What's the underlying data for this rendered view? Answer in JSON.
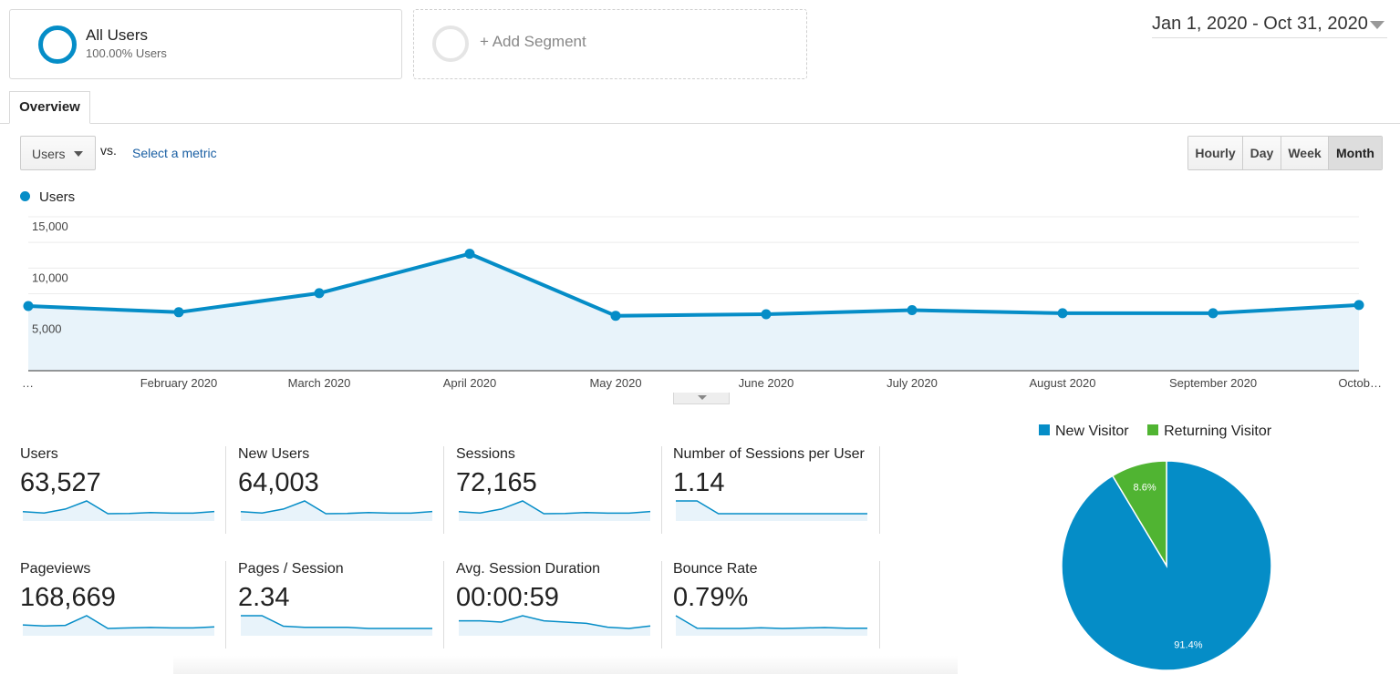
{
  "segments": {
    "all_users_title": "All Users",
    "all_users_sub": "100.00% Users",
    "add_segment": "+ Add Segment"
  },
  "date_range": "Jan 1, 2020 - Oct 31, 2020",
  "tabs": [
    {
      "label": "Overview"
    }
  ],
  "metric_picker": {
    "selected": "Users",
    "vs": "vs.",
    "select_metric": "Select a metric"
  },
  "granularity": [
    "Hourly",
    "Day",
    "Week",
    "Month"
  ],
  "granularity_selected": "Month",
  "colors": {
    "accent": "#058dc7",
    "fill": "#e8f3fa",
    "new_visitor": "#058dc7",
    "returning_visitor": "#50b432"
  },
  "chart_data": [
    {
      "type": "area",
      "legend": [
        "Users"
      ],
      "categories": [
        "…",
        "February 2020",
        "March 2020",
        "April 2020",
        "May 2020",
        "June 2020",
        "July 2020",
        "August 2020",
        "September 2020",
        "Octob…"
      ],
      "series": [
        {
          "name": "Users",
          "values": [
            6300,
            5700,
            7550,
            11400,
            5350,
            5500,
            5900,
            5600,
            5600,
            6400
          ]
        }
      ],
      "yticks": [
        "15,000",
        "10,000",
        "5,000"
      ],
      "ylim": [
        0,
        15000
      ],
      "grid": true
    },
    {
      "type": "pie",
      "legend": [
        "New Visitor",
        "Returning Visitor"
      ],
      "categories": [
        "New Visitor",
        "Returning Visitor"
      ],
      "values": [
        91.4,
        8.6
      ],
      "labels": [
        "91.4%",
        "8.6%"
      ]
    }
  ],
  "metrics": [
    {
      "label": "Users",
      "value": "63,527",
      "trend": [
        6300,
        5700,
        7550,
        11400,
        5350,
        5500,
        5900,
        5600,
        5600,
        6400
      ]
    },
    {
      "label": "New Users",
      "value": "64,003",
      "trend": [
        6300,
        5700,
        7550,
        11400,
        5350,
        5500,
        5900,
        5600,
        5600,
        6400
      ]
    },
    {
      "label": "Sessions",
      "value": "72,165",
      "trend": [
        6300,
        5700,
        7550,
        11400,
        5350,
        5500,
        5900,
        5600,
        5600,
        6400
      ]
    },
    {
      "label": "Number of Sessions per User",
      "value": "1.14",
      "trend": [
        1.15,
        1.15,
        1.14,
        1.14,
        1.14,
        1.14,
        1.14,
        1.14,
        1.14,
        1.14
      ]
    },
    {
      "label": "Pageviews",
      "value": "168,669",
      "trend": [
        17000,
        16000,
        16500,
        26000,
        13500,
        14000,
        14500,
        14000,
        14000,
        15000
      ]
    },
    {
      "label": "Pages / Session",
      "value": "2.34",
      "trend": [
        2.42,
        2.42,
        2.33,
        2.32,
        2.32,
        2.32,
        2.31,
        2.31,
        2.31,
        2.31
      ]
    },
    {
      "label": "Avg. Session Duration",
      "value": "00:00:59",
      "trend": [
        60,
        60,
        59,
        64,
        60,
        59,
        58,
        55,
        54,
        56
      ]
    },
    {
      "label": "Bounce Rate",
      "value": "0.79%",
      "trend": [
        2.6,
        0.6,
        0.55,
        0.55,
        0.65,
        0.55,
        0.62,
        0.7,
        0.6,
        0.6
      ]
    }
  ]
}
